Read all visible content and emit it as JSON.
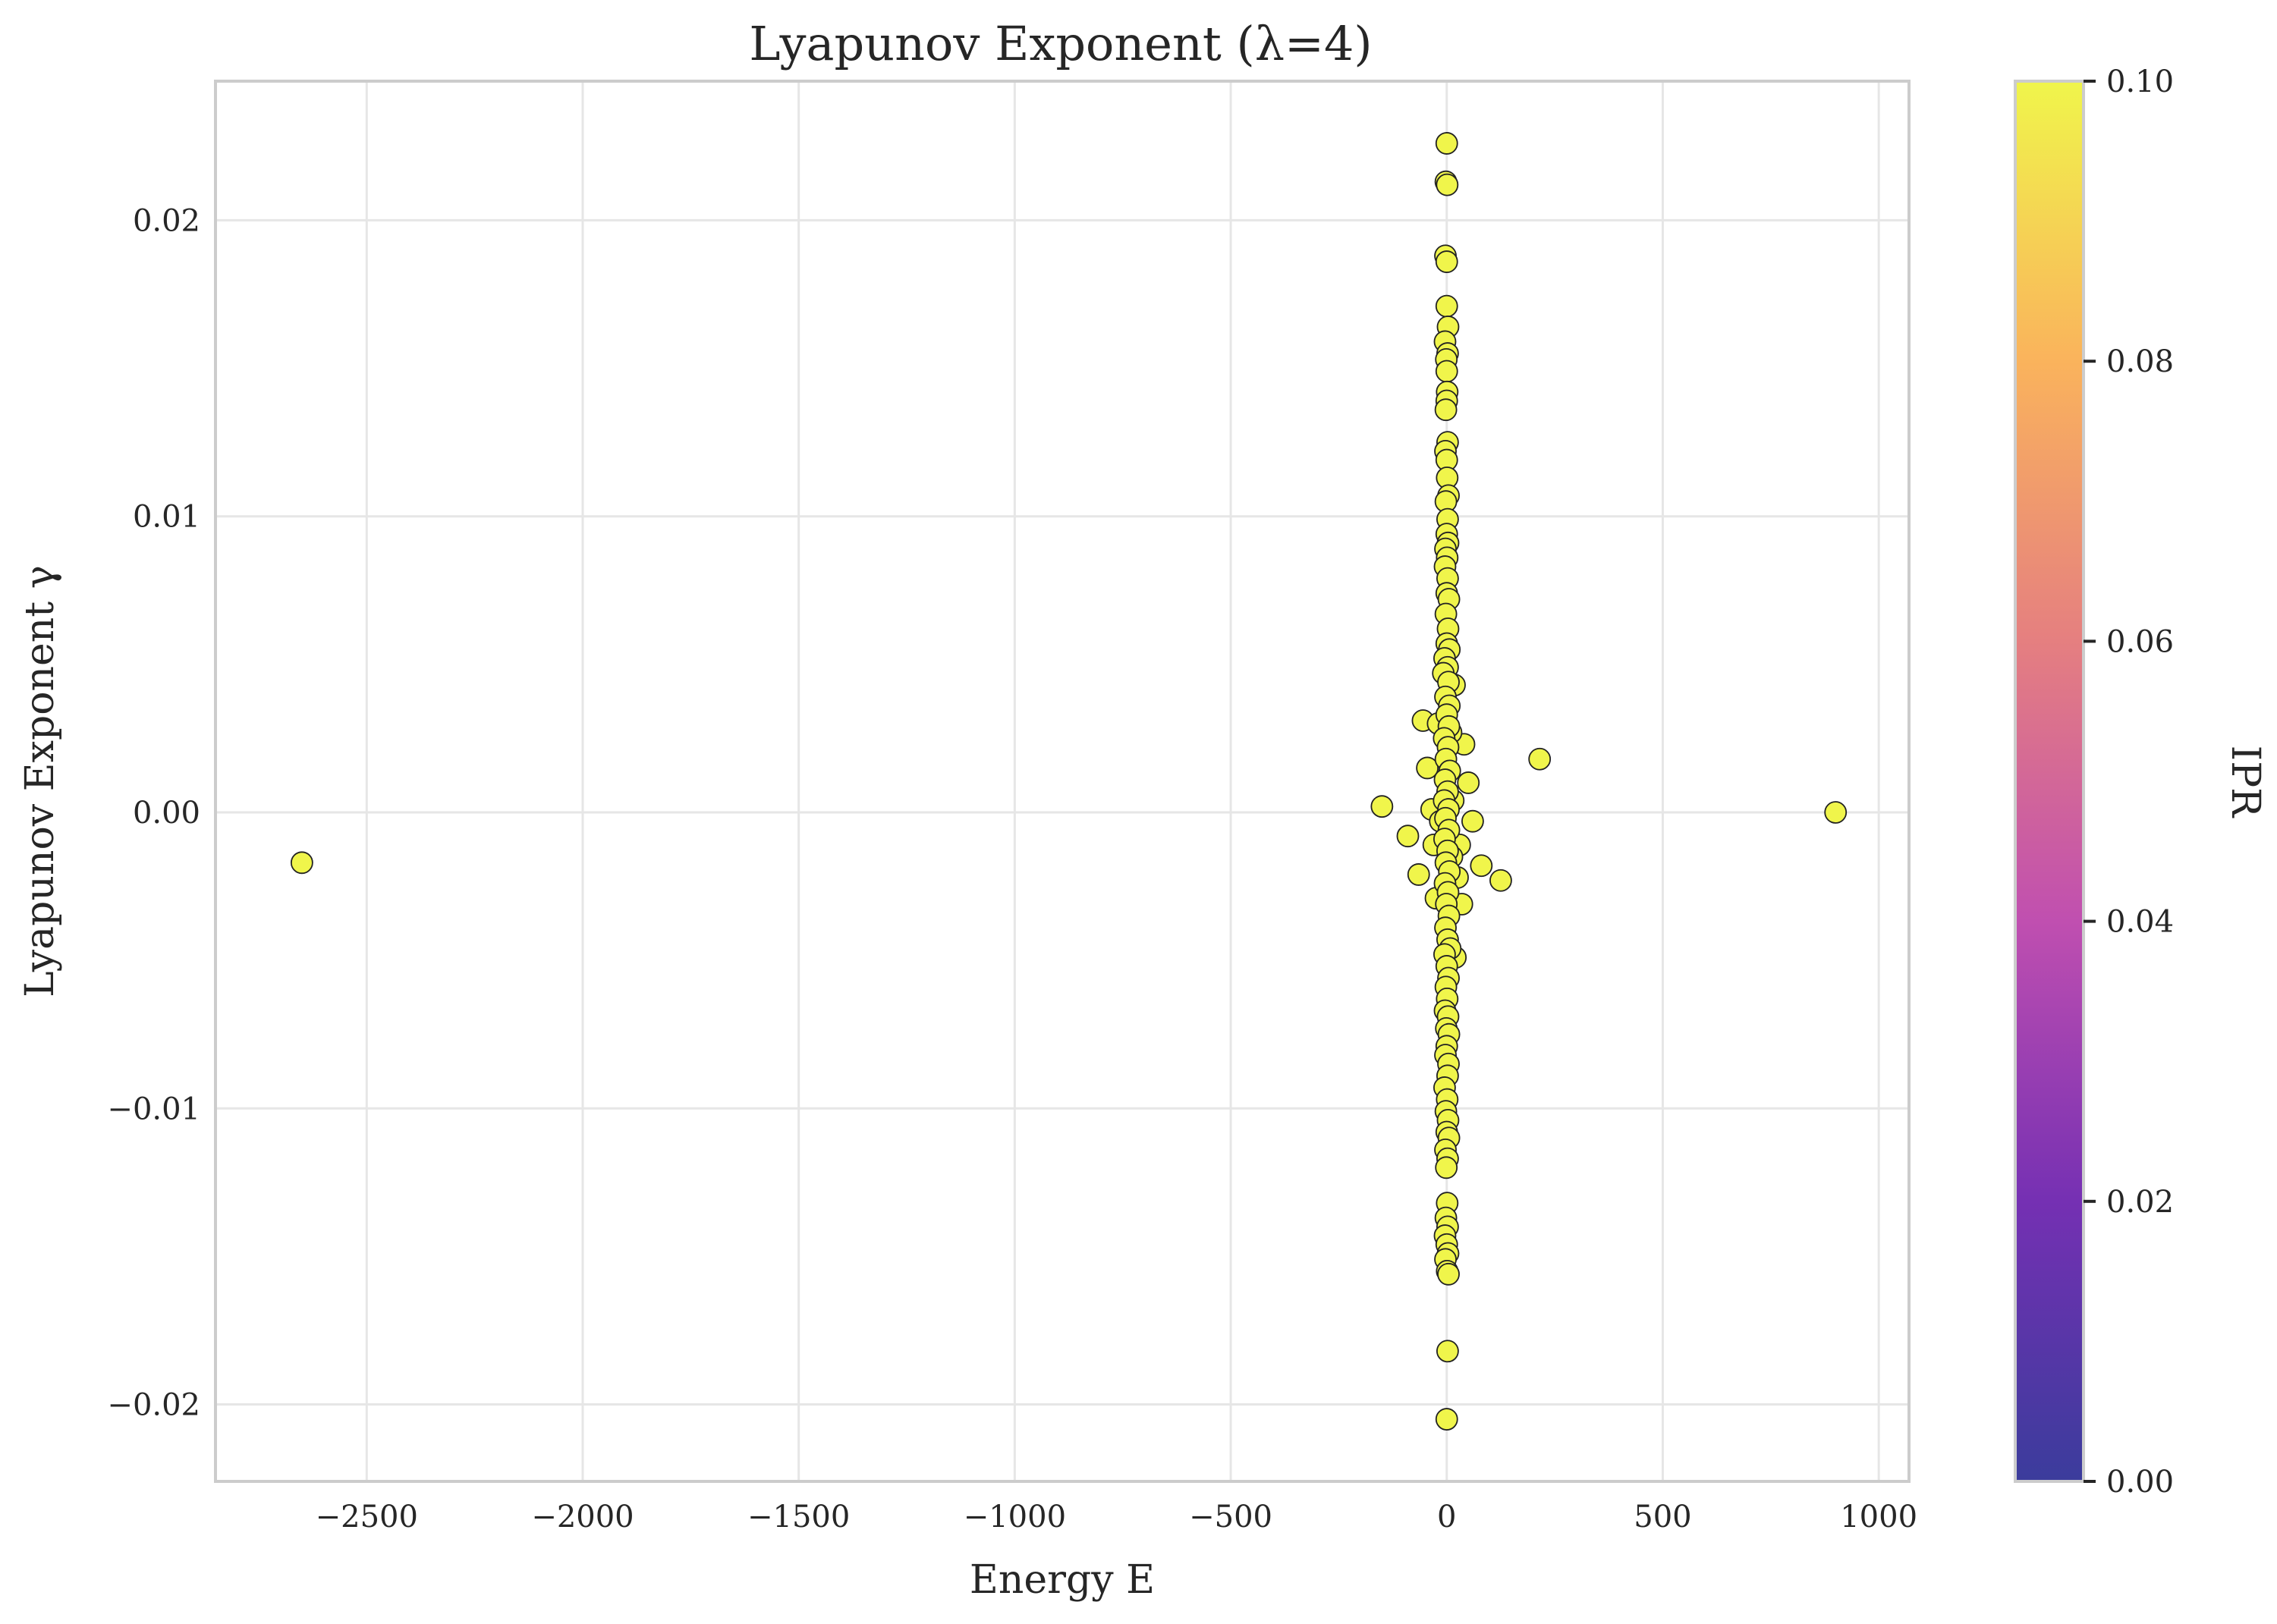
{
  "chart_data": {
    "type": "scatter",
    "title": "Lyapunov Exponent (λ=4)",
    "xlabel": "Energy E",
    "ylabel": "Lyapunov Exponent γ",
    "xlim": [
      -2850,
      1070
    ],
    "ylim": [
      -0.0226,
      0.0247
    ],
    "xticks": [
      -2500,
      -2000,
      -1500,
      -1000,
      -500,
      0,
      500,
      1000
    ],
    "xtick_labels": [
      "−2500",
      "−2000",
      "−1500",
      "−1000",
      "−500",
      "0",
      "500",
      "1000"
    ],
    "yticks": [
      -0.02,
      -0.01,
      0.0,
      0.01,
      0.02
    ],
    "ytick_labels": [
      "−0.02",
      "−0.01",
      "0.00",
      "0.01",
      "0.02"
    ],
    "grid": true,
    "colorbar": {
      "label": "IPR",
      "range": [
        0.0,
        0.1
      ],
      "ticks": [
        0.0,
        0.02,
        0.04,
        0.06,
        0.08,
        0.1
      ],
      "tick_labels": [
        "0.00",
        "0.02",
        "0.04",
        "0.06",
        "0.08",
        "0.10"
      ],
      "colors": [
        "#3b3c9c",
        "#7530b3",
        "#c04fb0",
        "#e57f80",
        "#fab35c",
        "#f0f54b"
      ]
    },
    "point_color": "#f0f54b",
    "points": [
      {
        "x": -2650,
        "y": -0.0017,
        "ipr": 0.1
      },
      {
        "x": 900,
        "y": 0.0,
        "ipr": 0.1
      },
      {
        "x": 215,
        "y": 0.0018,
        "ipr": 0.1
      },
      {
        "x": 125,
        "y": -0.0023,
        "ipr": 0.1
      },
      {
        "x": 80,
        "y": -0.0018,
        "ipr": 0.1
      },
      {
        "x": 60,
        "y": -0.0003,
        "ipr": 0.1
      },
      {
        "x": 50,
        "y": 0.001,
        "ipr": 0.1
      },
      {
        "x": 40,
        "y": 0.0023,
        "ipr": 0.1
      },
      {
        "x": 35,
        "y": -0.0031,
        "ipr": 0.1
      },
      {
        "x": 30,
        "y": -0.0011,
        "ipr": 0.1
      },
      {
        "x": 25,
        "y": -0.0022,
        "ipr": 0.1
      },
      {
        "x": 20,
        "y": -0.0049,
        "ipr": 0.1
      },
      {
        "x": 18,
        "y": 0.0043,
        "ipr": 0.1
      },
      {
        "x": 15,
        "y": 0.0004,
        "ipr": 0.1
      },
      {
        "x": 12,
        "y": -0.0015,
        "ipr": 0.1
      },
      {
        "x": 10,
        "y": 0.0027,
        "ipr": 0.1
      },
      {
        "x": -150,
        "y": 0.0002,
        "ipr": 0.1
      },
      {
        "x": -90,
        "y": -0.0008,
        "ipr": 0.1
      },
      {
        "x": -65,
        "y": -0.0021,
        "ipr": 0.1
      },
      {
        "x": -55,
        "y": 0.0031,
        "ipr": 0.1
      },
      {
        "x": -45,
        "y": 0.0015,
        "ipr": 0.1
      },
      {
        "x": -35,
        "y": 0.0001,
        "ipr": 0.1
      },
      {
        "x": -30,
        "y": -0.0011,
        "ipr": 0.1
      },
      {
        "x": -25,
        "y": -0.0029,
        "ipr": 0.1
      },
      {
        "x": -20,
        "y": 0.003,
        "ipr": 0.1
      },
      {
        "x": -15,
        "y": -0.0003,
        "ipr": 0.1
      },
      {
        "x": 0,
        "y": 0.0226,
        "ipr": 0.1
      },
      {
        "x": -2,
        "y": 0.0213,
        "ipr": 0.1
      },
      {
        "x": 1,
        "y": 0.0212,
        "ipr": 0.1
      },
      {
        "x": -3,
        "y": 0.0188,
        "ipr": 0.1
      },
      {
        "x": 0,
        "y": 0.0186,
        "ipr": 0.1
      },
      {
        "x": 0,
        "y": 0.0171,
        "ipr": 0.1
      },
      {
        "x": 3,
        "y": 0.0164,
        "ipr": 0.1
      },
      {
        "x": -4,
        "y": 0.0159,
        "ipr": 0.1
      },
      {
        "x": 2,
        "y": 0.0155,
        "ipr": 0.1
      },
      {
        "x": -1,
        "y": 0.0153,
        "ipr": 0.1
      },
      {
        "x": 0,
        "y": 0.0149,
        "ipr": 0.1
      },
      {
        "x": 1,
        "y": 0.0142,
        "ipr": 0.1
      },
      {
        "x": 0,
        "y": 0.0139,
        "ipr": 0.1
      },
      {
        "x": -2,
        "y": 0.0136,
        "ipr": 0.1
      },
      {
        "x": 2,
        "y": 0.0125,
        "ipr": 0.1
      },
      {
        "x": -3,
        "y": 0.0122,
        "ipr": 0.1
      },
      {
        "x": 0,
        "y": 0.0119,
        "ipr": 0.1
      },
      {
        "x": 1,
        "y": 0.0113,
        "ipr": 0.1
      },
      {
        "x": 4,
        "y": 0.0107,
        "ipr": 0.1
      },
      {
        "x": -2,
        "y": 0.0105,
        "ipr": 0.1
      },
      {
        "x": 2,
        "y": 0.0099,
        "ipr": 0.1
      },
      {
        "x": 0,
        "y": 0.0094,
        "ipr": 0.1
      },
      {
        "x": 3,
        "y": 0.0091,
        "ipr": 0.1
      },
      {
        "x": -3,
        "y": 0.0089,
        "ipr": 0.1
      },
      {
        "x": 1,
        "y": 0.0086,
        "ipr": 0.1
      },
      {
        "x": -4,
        "y": 0.0083,
        "ipr": 0.1
      },
      {
        "x": 2,
        "y": 0.0079,
        "ipr": 0.1
      },
      {
        "x": 0,
        "y": 0.0074,
        "ipr": 0.1
      },
      {
        "x": 5,
        "y": 0.0072,
        "ipr": 0.1
      },
      {
        "x": -2,
        "y": 0.0067,
        "ipr": 0.1
      },
      {
        "x": 3,
        "y": 0.0062,
        "ipr": 0.1
      },
      {
        "x": 0,
        "y": 0.0057,
        "ipr": 0.1
      },
      {
        "x": 6,
        "y": 0.0055,
        "ipr": 0.1
      },
      {
        "x": -5,
        "y": 0.0052,
        "ipr": 0.1
      },
      {
        "x": 2,
        "y": 0.0049,
        "ipr": 0.1
      },
      {
        "x": -8,
        "y": 0.0047,
        "ipr": 0.1
      },
      {
        "x": 4,
        "y": 0.0044,
        "ipr": 0.1
      },
      {
        "x": -3,
        "y": 0.0039,
        "ipr": 0.1
      },
      {
        "x": 6,
        "y": 0.0036,
        "ipr": 0.1
      },
      {
        "x": 0,
        "y": 0.0033,
        "ipr": 0.1
      },
      {
        "x": 5,
        "y": 0.0029,
        "ipr": 0.1
      },
      {
        "x": -6,
        "y": 0.0025,
        "ipr": 0.1
      },
      {
        "x": 3,
        "y": 0.0022,
        "ipr": 0.1
      },
      {
        "x": -2,
        "y": 0.0018,
        "ipr": 0.1
      },
      {
        "x": 7,
        "y": 0.0014,
        "ipr": 0.1
      },
      {
        "x": -4,
        "y": 0.0011,
        "ipr": 0.1
      },
      {
        "x": 2,
        "y": 0.0007,
        "ipr": 0.1
      },
      {
        "x": -6,
        "y": 0.0004,
        "ipr": 0.1
      },
      {
        "x": 4,
        "y": 0.0001,
        "ipr": 0.1
      },
      {
        "x": -3,
        "y": -0.0002,
        "ipr": 0.1
      },
      {
        "x": 5,
        "y": -0.0006,
        "ipr": 0.1
      },
      {
        "x": -5,
        "y": -0.0009,
        "ipr": 0.1
      },
      {
        "x": 2,
        "y": -0.0013,
        "ipr": 0.1
      },
      {
        "x": -2,
        "y": -0.0017,
        "ipr": 0.1
      },
      {
        "x": 6,
        "y": -0.002,
        "ipr": 0.1
      },
      {
        "x": -4,
        "y": -0.0024,
        "ipr": 0.1
      },
      {
        "x": 3,
        "y": -0.0027,
        "ipr": 0.1
      },
      {
        "x": -1,
        "y": -0.0031,
        "ipr": 0.1
      },
      {
        "x": 5,
        "y": -0.0035,
        "ipr": 0.1
      },
      {
        "x": -3,
        "y": -0.0039,
        "ipr": 0.1
      },
      {
        "x": 2,
        "y": -0.0043,
        "ipr": 0.1
      },
      {
        "x": 8,
        "y": -0.0046,
        "ipr": 0.1
      },
      {
        "x": -5,
        "y": -0.0048,
        "ipr": 0.1
      },
      {
        "x": 0,
        "y": -0.0052,
        "ipr": 0.1
      },
      {
        "x": 4,
        "y": -0.0056,
        "ipr": 0.1
      },
      {
        "x": -2,
        "y": -0.0059,
        "ipr": 0.1
      },
      {
        "x": 1,
        "y": -0.0063,
        "ipr": 0.1
      },
      {
        "x": -4,
        "y": -0.0067,
        "ipr": 0.1
      },
      {
        "x": 3,
        "y": -0.0069,
        "ipr": 0.1
      },
      {
        "x": -1,
        "y": -0.0073,
        "ipr": 0.1
      },
      {
        "x": 5,
        "y": -0.0075,
        "ipr": 0.1
      },
      {
        "x": 0,
        "y": -0.0079,
        "ipr": 0.1
      },
      {
        "x": -3,
        "y": -0.0082,
        "ipr": 0.1
      },
      {
        "x": 4,
        "y": -0.0085,
        "ipr": 0.1
      },
      {
        "x": 2,
        "y": -0.0089,
        "ipr": 0.1
      },
      {
        "x": -5,
        "y": -0.0093,
        "ipr": 0.1
      },
      {
        "x": 1,
        "y": -0.0097,
        "ipr": 0.1
      },
      {
        "x": -2,
        "y": -0.0101,
        "ipr": 0.1
      },
      {
        "x": 3,
        "y": -0.0104,
        "ipr": 0.1
      },
      {
        "x": 0,
        "y": -0.0108,
        "ipr": 0.1
      },
      {
        "x": 5,
        "y": -0.011,
        "ipr": 0.1
      },
      {
        "x": -3,
        "y": -0.0114,
        "ipr": 0.1
      },
      {
        "x": 2,
        "y": -0.0117,
        "ipr": 0.1
      },
      {
        "x": -1,
        "y": -0.012,
        "ipr": 0.1
      },
      {
        "x": 1,
        "y": -0.0132,
        "ipr": 0.1
      },
      {
        "x": -2,
        "y": -0.0137,
        "ipr": 0.1
      },
      {
        "x": 2,
        "y": -0.014,
        "ipr": 0.1
      },
      {
        "x": -4,
        "y": -0.0143,
        "ipr": 0.1
      },
      {
        "x": 0,
        "y": -0.0146,
        "ipr": 0.1
      },
      {
        "x": 3,
        "y": -0.0149,
        "ipr": 0.1
      },
      {
        "x": -3,
        "y": -0.0151,
        "ipr": 0.1
      },
      {
        "x": 1,
        "y": -0.0155,
        "ipr": 0.1
      },
      {
        "x": 4,
        "y": -0.0156,
        "ipr": 0.1
      },
      {
        "x": 2,
        "y": -0.0182,
        "ipr": 0.1
      },
      {
        "x": 0,
        "y": -0.0205,
        "ipr": 0.1
      }
    ]
  }
}
